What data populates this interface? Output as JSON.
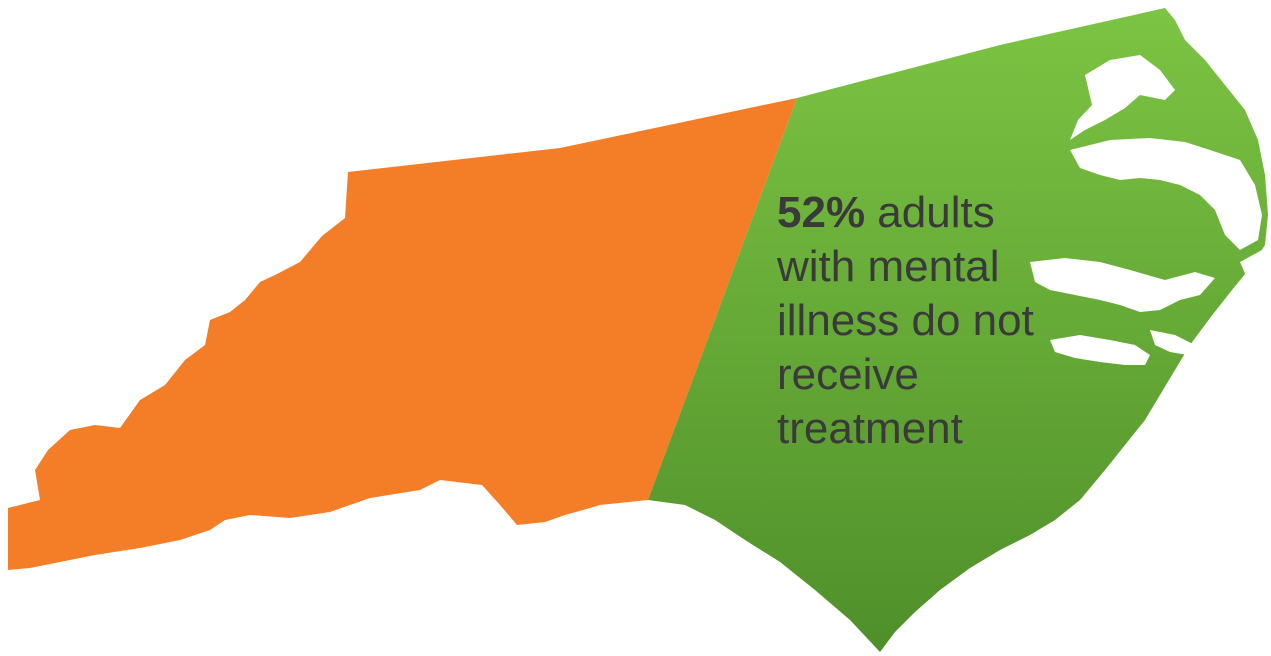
{
  "statistic": {
    "percent": "52%",
    "line1_rest": " adults",
    "line2": "with mental",
    "line3": "illness do not",
    "line4": "receive",
    "line5": "treatment"
  },
  "regions": [
    {
      "name": "west",
      "share_percent": 48,
      "color": "#f47e28"
    },
    {
      "name": "east",
      "share_percent": 52,
      "color": "#6cb33f"
    }
  ],
  "colors": {
    "orange": "#f47e28",
    "green_light": "#7cc443",
    "green_dark": "#4f8f2a",
    "water": "#ffffff",
    "text": "#3a3a3a"
  }
}
